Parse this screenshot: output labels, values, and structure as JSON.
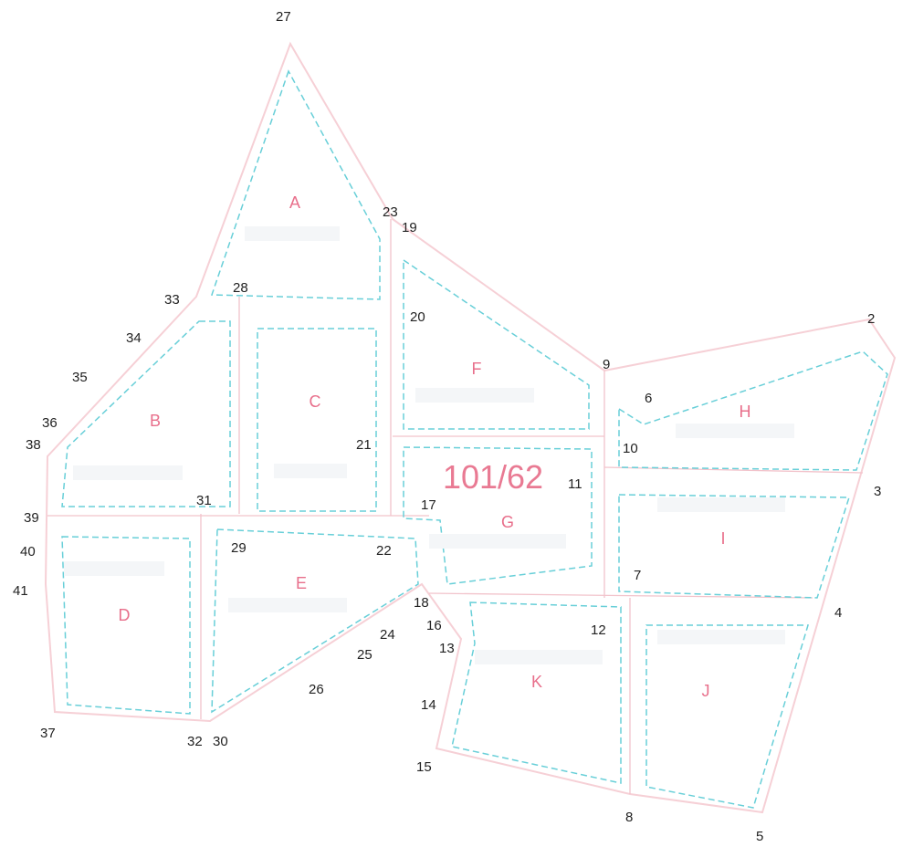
{
  "plot_number": "101/62",
  "parcels": [
    {
      "id": "A",
      "label": "A"
    },
    {
      "id": "B",
      "label": "B"
    },
    {
      "id": "C",
      "label": "C"
    },
    {
      "id": "D",
      "label": "D"
    },
    {
      "id": "E",
      "label": "E"
    },
    {
      "id": "F",
      "label": "F"
    },
    {
      "id": "G",
      "label": "G"
    },
    {
      "id": "H",
      "label": "H"
    },
    {
      "id": "I",
      "label": "I"
    },
    {
      "id": "J",
      "label": "J"
    },
    {
      "id": "K",
      "label": "K"
    }
  ],
  "vertices": [
    "2",
    "3",
    "4",
    "5",
    "6",
    "7",
    "8",
    "9",
    "10",
    "11",
    "12",
    "13",
    "14",
    "15",
    "16",
    "17",
    "18",
    "19",
    "20",
    "21",
    "22",
    "23",
    "24",
    "25",
    "26",
    "27",
    "28",
    "29",
    "30",
    "31",
    "32",
    "33",
    "34",
    "35",
    "36",
    "37",
    "38",
    "39",
    "40",
    "41"
  ],
  "colors": {
    "boundary": "#f6d0d6",
    "parcel_outline": "#68cfd8",
    "parcel_label": "#e86f8b",
    "vertex_label": "#222222"
  }
}
